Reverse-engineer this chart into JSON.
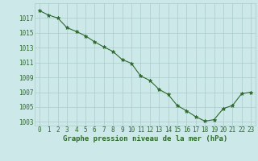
{
  "x": [
    0,
    1,
    2,
    3,
    4,
    5,
    6,
    7,
    8,
    9,
    10,
    11,
    12,
    13,
    14,
    15,
    16,
    17,
    18,
    19,
    20,
    21,
    22,
    23
  ],
  "y": [
    1018.0,
    1017.4,
    1017.0,
    1015.7,
    1015.2,
    1014.6,
    1013.8,
    1013.1,
    1012.5,
    1011.4,
    1010.9,
    1009.2,
    1008.6,
    1007.4,
    1006.7,
    1005.2,
    1004.5,
    1003.7,
    1003.1,
    1003.3,
    1004.8,
    1005.2,
    1006.8,
    1007.0
  ],
  "line_color": "#2d6a2d",
  "marker_color": "#2d6a2d",
  "bg_color": "#cce8e8",
  "grid_color": "#aacccc",
  "text_color": "#2d6a2d",
  "xlabel": "Graphe pression niveau de la mer (hPa)",
  "ylim": [
    1002.5,
    1019.0
  ],
  "xlim": [
    -0.5,
    23.5
  ],
  "yticks": [
    1003,
    1005,
    1007,
    1009,
    1011,
    1013,
    1015,
    1017
  ],
  "xticks": [
    0,
    1,
    2,
    3,
    4,
    5,
    6,
    7,
    8,
    9,
    10,
    11,
    12,
    13,
    14,
    15,
    16,
    17,
    18,
    19,
    20,
    21,
    22,
    23
  ],
  "tick_fontsize": 5.5,
  "xlabel_fontsize": 6.5
}
